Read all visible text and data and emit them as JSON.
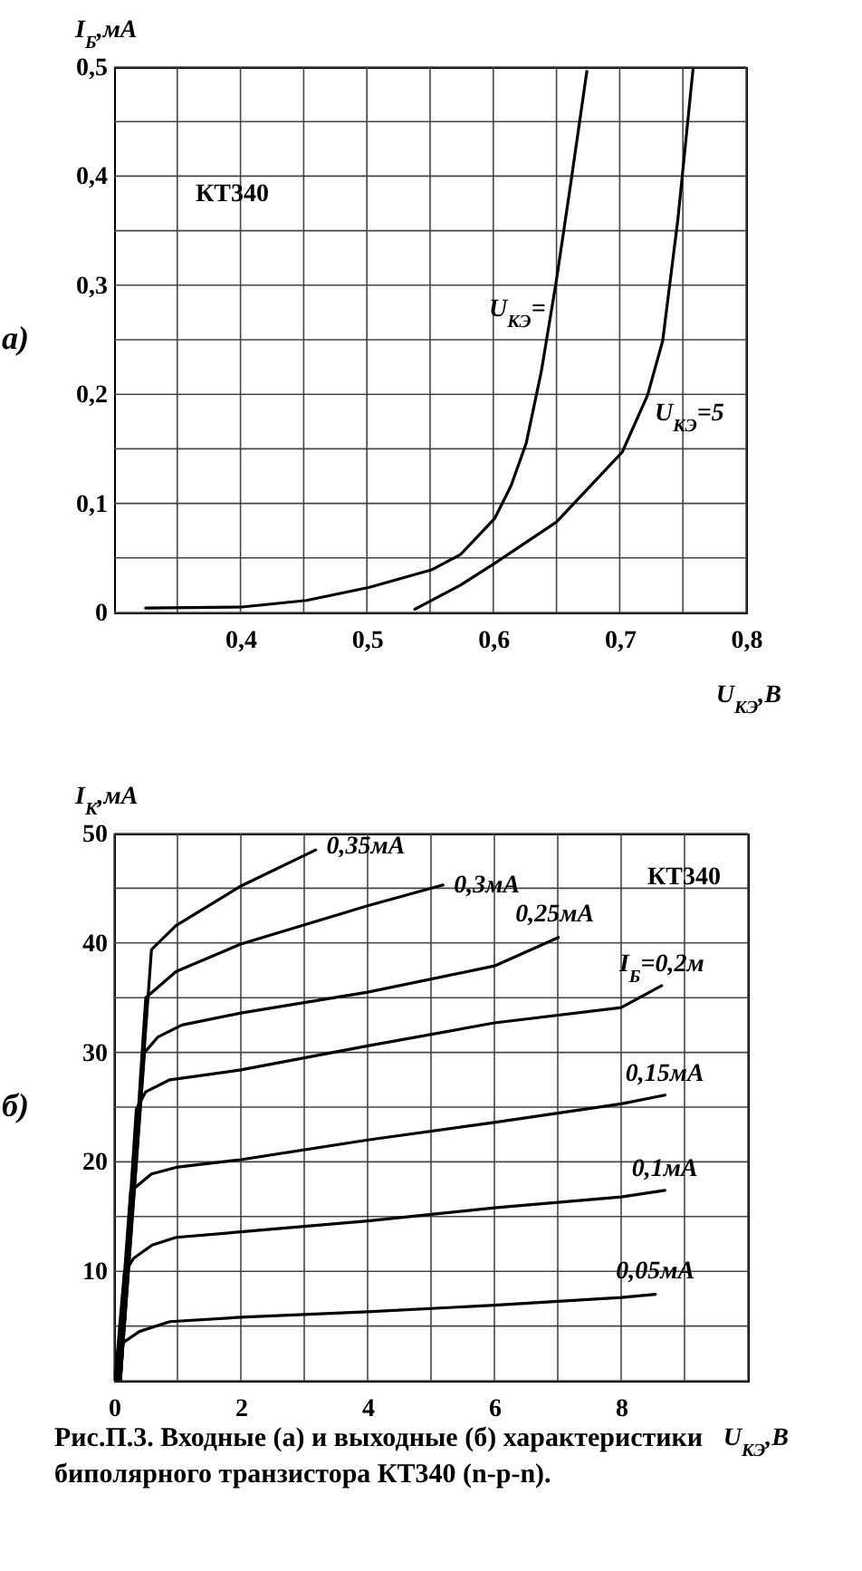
{
  "chart_data": [
    {
      "type": "line",
      "ylabel": "I$_{Б}$,мА",
      "xlabel": "U$_{КЭ}$,В",
      "series": [
        {
          "name": "U$_{КЭ}$=",
          "color": "#000000",
          "x": [
            0.325,
            0.401,
            0.452,
            0.502,
            0.551,
            0.574,
            0.601,
            0.614,
            0.626,
            0.638,
            0.65,
            0.662,
            0.674
          ],
          "values": [
            0.004,
            0.005,
            0.011,
            0.023,
            0.039,
            0.053,
            0.086,
            0.116,
            0.155,
            0.221,
            0.305,
            0.399,
            0.496
          ]
        },
        {
          "name": "U$_{КЭ}$=5",
          "color": "#000000",
          "x": [
            0.538,
            0.574,
            0.601,
            0.65,
            0.702,
            0.722,
            0.734,
            0.746,
            0.758
          ],
          "values": [
            0.003,
            0.025,
            0.045,
            0.083,
            0.147,
            0.199,
            0.249,
            0.36,
            0.498
          ]
        }
      ],
      "xlim": [
        0.3,
        0.8
      ],
      "ylim": [
        0,
        0.5
      ],
      "xticks": [
        {
          "value": 0.35,
          "label": null
        },
        {
          "value": 0.4,
          "label": "0,4"
        },
        {
          "value": 0.45,
          "label": null
        },
        {
          "value": 0.5,
          "label": "0,5"
        },
        {
          "value": 0.55,
          "label": null
        },
        {
          "value": 0.6,
          "label": "0,6"
        },
        {
          "value": 0.65,
          "label": null
        },
        {
          "value": 0.7,
          "label": "0,7"
        },
        {
          "value": 0.75,
          "label": null
        },
        {
          "value": 0.8,
          "label": "0,8"
        }
      ],
      "yticks": [
        0,
        {
          "value": 0.05,
          "label": null
        },
        {
          "value": 0.1,
          "label": "0,1"
        },
        {
          "value": 0.15,
          "label": null
        },
        {
          "value": 0.2,
          "label": "0,2"
        },
        {
          "value": 0.25,
          "label": null
        },
        {
          "value": 0.3,
          "label": "0,3"
        },
        {
          "value": 0.35,
          "label": null
        },
        {
          "value": 0.4,
          "label": "0,4"
        },
        {
          "value": 0.45,
          "label": null
        },
        {
          "value": 0.5,
          "label": "0,5"
        }
      ],
      "grid": true,
      "annotations": [
        "а)",
        "КТ340"
      ]
    },
    {
      "type": "line",
      "ylabel": "I$_{К}$,мА",
      "xlabel": "U$_{КЭ}$,В",
      "series": [
        {
          "name": "0,05мА",
          "color": "#000000",
          "x": [
            0.02,
            0.07,
            0.4,
            0.88,
            2,
            4,
            6,
            8,
            8.54
          ],
          "values": [
            0.1,
            3.2,
            4.5,
            5.4,
            5.8,
            6.3,
            6.9,
            7.6,
            7.9
          ]
        },
        {
          "name": "0,1мА",
          "color": "#000000",
          "x": [
            0.02,
            0.16,
            0.31,
            0.6,
            0.98,
            2,
            4,
            6,
            8,
            8.69
          ],
          "values": [
            0.4,
            9.8,
            11.2,
            12.4,
            13.1,
            13.6,
            14.6,
            15.8,
            16.8,
            17.4
          ]
        },
        {
          "name": "0,15мА",
          "color": "#000000",
          "x": [
            0.04,
            0.26,
            0.59,
            0.98,
            2,
            4,
            6,
            8,
            8.69
          ],
          "values": [
            0.1,
            17.3,
            18.9,
            19.5,
            20.2,
            22,
            23.6,
            25.3,
            26.1
          ]
        },
        {
          "name": "I$_{Б}$=0,2м",
          "color": "#000000",
          "x": [
            0.07,
            0.35,
            0.5,
            0.88,
            2,
            4,
            6,
            8,
            8.64
          ],
          "values": [
            0.1,
            24.8,
            26.4,
            27.5,
            28.4,
            30.6,
            32.7,
            34.1,
            36.1
          ]
        },
        {
          "name": "0,25мА",
          "color": "#000000",
          "x": [
            0.1,
            0.48,
            0.69,
            1.07,
            2,
            4,
            6,
            7.01
          ],
          "values": [
            0.1,
            30,
            31.4,
            32.5,
            33.6,
            35.5,
            37.9,
            40.5
          ]
        },
        {
          "name": "0,3мА",
          "color": "#000000",
          "x": [
            0.1,
            0.5,
            0.98,
            2,
            4,
            5.19
          ],
          "values": [
            0.1,
            35,
            37.4,
            39.9,
            43.4,
            45.3
          ]
        },
        {
          "name": "0,35мА",
          "color": "#000000",
          "x": [
            0.1,
            0.59,
            0.98,
            2,
            3.18
          ],
          "values": [
            0.1,
            39.4,
            41.6,
            45.2,
            48.5
          ]
        }
      ],
      "xlim": [
        0,
        10
      ],
      "ylim": [
        0,
        50
      ],
      "xticks": [
        0,
        {
          "value": 1,
          "label": null
        },
        2,
        {
          "value": 3,
          "label": null
        },
        4,
        {
          "value": 5,
          "label": null
        },
        6,
        {
          "value": 7,
          "label": null
        },
        8,
        {
          "value": 9,
          "label": null
        },
        {
          "value": 10,
          "label": null
        }
      ],
      "yticks": [
        {
          "value": 0,
          "label": null
        },
        {
          "value": 5,
          "label": null
        },
        10,
        {
          "value": 15,
          "label": null
        },
        20,
        {
          "value": 25,
          "label": null
        },
        30,
        {
          "value": 35,
          "label": null
        },
        40,
        {
          "value": 45,
          "label": null
        },
        50
      ],
      "grid": true,
      "annotations": [
        "б)",
        "КТ340",
        "Рис.П.3. Входные (а) и выходные (б) характеристики биполярного транзистора КТ340 (n-p-n)."
      ]
    }
  ]
}
